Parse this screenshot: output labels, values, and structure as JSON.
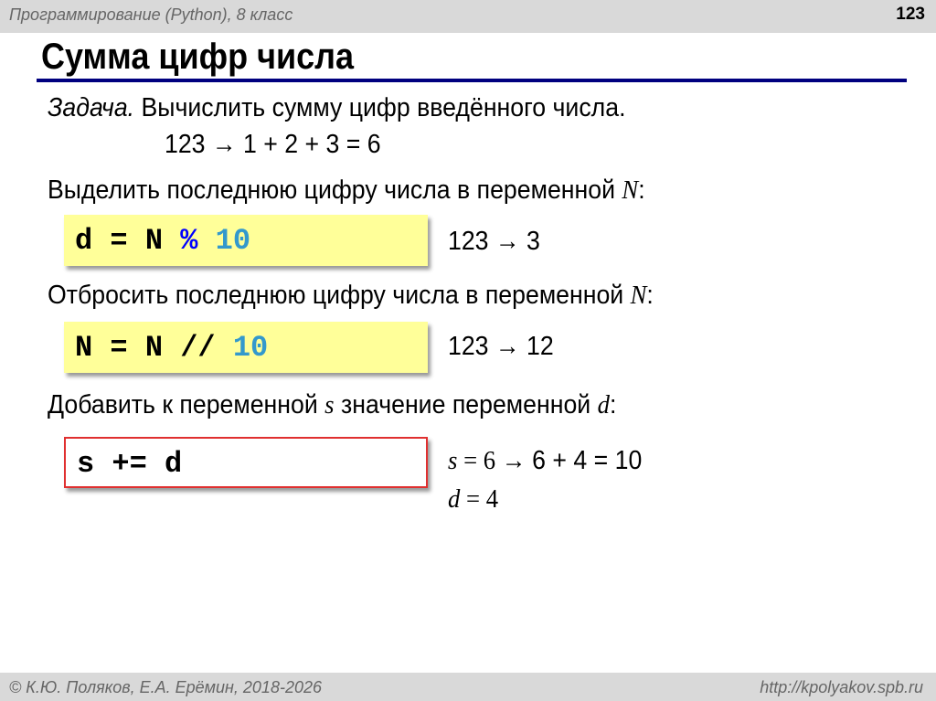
{
  "header": {
    "course": "Программирование (Python), 8 класс",
    "page_number": "123"
  },
  "title": "Сумма цифр числа",
  "task": {
    "label": "Задача.",
    "text": " Вычислить сумму цифр введённого числа.",
    "example": "123 → 1 + 2 + 3 = 6"
  },
  "steps": [
    {
      "text": "Выделить последнюю цифру числа в переменной ",
      "var": "N",
      "colon": ":",
      "code": [
        "d = N ",
        "%",
        " 10"
      ],
      "result": "123 → 3"
    },
    {
      "text": "Отбросить последнюю цифру числа в переменной ",
      "var": "N",
      "colon": ":",
      "code": [
        "N = N // ",
        "10"
      ],
      "result": "123 → 12"
    },
    {
      "text": "Добавить к переменной ",
      "var": "s",
      "text2": " значение переменной ",
      "var2": "d",
      "colon": ":",
      "code": [
        "s += d"
      ],
      "result_s_var": "s",
      "result_s_eq": " = 6 → ",
      "result_s_rest": "6 + 4 = 10",
      "result_d_var": "d",
      "result_d_eq": " = 4"
    }
  ],
  "footer": {
    "copyright": "© К.Ю. Поляков, Е.А. Ерёмин, 2018-2026",
    "url": "http://kpolyakov.spb.ru"
  },
  "colors": {
    "rule": "#00007f",
    "code_box": "#ffff99",
    "highlight_box_border": "#e03030",
    "operator": "#0000ff",
    "number": "#3399cc"
  }
}
